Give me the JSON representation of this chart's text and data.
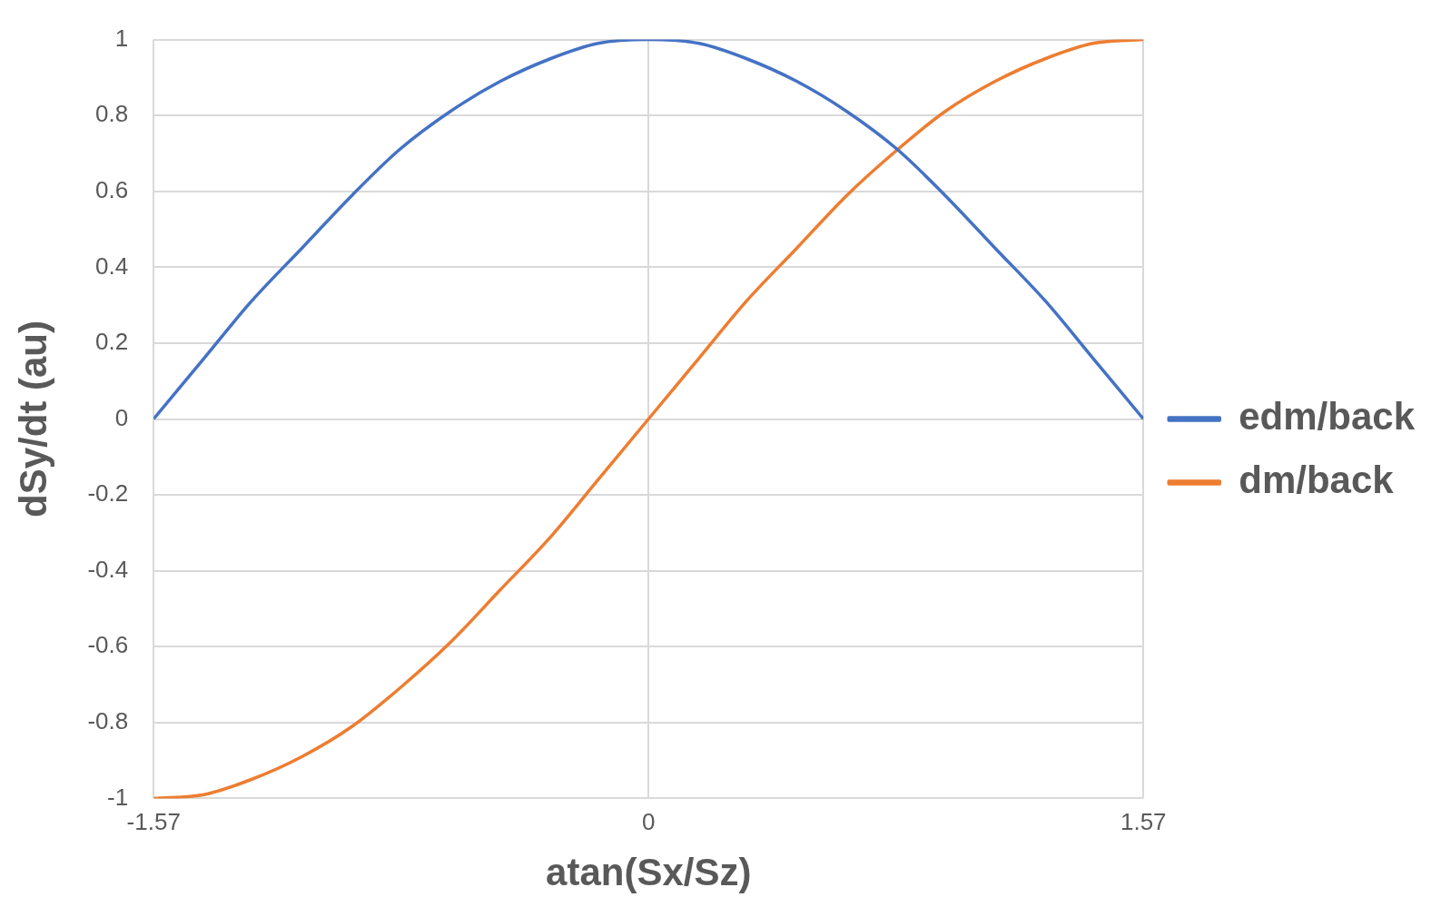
{
  "chart_data": {
    "type": "line",
    "xlabel": "atan(Sx/Sz)",
    "ylabel": "dSy/dt (au)",
    "x": [
      -1.57,
      -1.41,
      -1.26,
      -1.1,
      -0.94,
      -0.79,
      -0.63,
      -0.47,
      -0.31,
      -0.16,
      0,
      0.16,
      0.31,
      0.47,
      0.63,
      0.79,
      0.94,
      1.1,
      1.26,
      1.41,
      1.57
    ],
    "series": [
      {
        "name": "edm/back",
        "color": "#4472c4",
        "values": [
          0,
          0.16,
          0.31,
          0.45,
          0.59,
          0.71,
          0.81,
          0.89,
          0.95,
          0.99,
          1,
          0.99,
          0.95,
          0.89,
          0.81,
          0.71,
          0.59,
          0.45,
          0.31,
          0.16,
          0
        ]
      },
      {
        "name": "dm/back",
        "color": "#ed7d31",
        "values": [
          -1,
          -0.99,
          -0.95,
          -0.89,
          -0.81,
          -0.71,
          -0.59,
          -0.45,
          -0.31,
          -0.16,
          0,
          0.16,
          0.31,
          0.45,
          0.59,
          0.71,
          0.81,
          0.89,
          0.95,
          0.99,
          1
        ]
      }
    ],
    "xlim": [
      -1.57,
      1.57
    ],
    "xticks": [
      -1.57,
      0,
      1.57
    ],
    "ylim": [
      -1,
      1
    ],
    "yticks": [
      -1,
      -0.8,
      -0.6,
      -0.4,
      -0.2,
      0,
      0.2,
      0.4,
      0.6,
      0.8,
      1
    ],
    "grid": true,
    "legend": "right",
    "marker": "none",
    "line_style": "solid"
  }
}
